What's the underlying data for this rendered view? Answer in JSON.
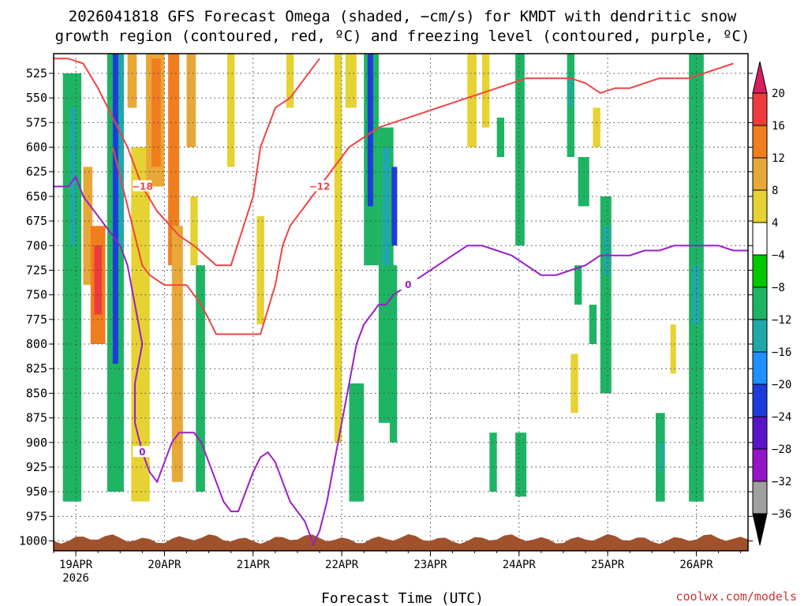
{
  "chart_data": {
    "type": "heatmap",
    "title_line1": "2026041818 GFS Forecast Omega (shaded, −cm/s) for KMDT with dendritic snow",
    "title_line2": "growth region (contoured, red, ºC) and freezing level (contoured, purple, ºC)",
    "xlabel": "Forecast Time (UTC)",
    "credit": "coolwx.com/models",
    "x_range_hours": [
      0,
      188
    ],
    "y_range_hpa": [
      505,
      1010
    ],
    "y_ticks": [
      525,
      550,
      575,
      600,
      625,
      650,
      675,
      700,
      725,
      750,
      775,
      800,
      825,
      850,
      875,
      900,
      925,
      950,
      975,
      1000
    ],
    "x_ticks": [
      {
        "label": "19APR",
        "sublabel": "2026",
        "hour": 6
      },
      {
        "label": "20APR",
        "hour": 30
      },
      {
        "label": "21APR",
        "hour": 54
      },
      {
        "label": "22APR",
        "hour": 78
      },
      {
        "label": "23APR",
        "hour": 102
      },
      {
        "label": "24APR",
        "hour": 126
      },
      {
        "label": "25APR",
        "hour": 150
      },
      {
        "label": "26APR",
        "hour": 174
      }
    ],
    "colorbar": {
      "labels": [
        "20",
        "16",
        "12",
        "8",
        "4",
        "−4",
        "−8",
        "−12",
        "−16",
        "−20",
        "−24",
        "−28",
        "−32",
        "−36"
      ],
      "colors": [
        "#d81e5b",
        "#ee3b3b",
        "#f07d1e",
        "#e8a838",
        "#e6d232",
        "#ffffff",
        "#00c800",
        "#1eb464",
        "#20a8a8",
        "#1e90ff",
        "#1e3cdc",
        "#5a14c8",
        "#9614c8",
        "#a0a0a0",
        "#000000"
      ]
    },
    "shaded_regions": [
      {
        "x0": 2.5,
        "x1": 7.5,
        "p0": 525,
        "p1": 960,
        "value": -8
      },
      {
        "x0": 4.5,
        "x1": 6.0,
        "p0": 560,
        "p1": 700,
        "value": -14
      },
      {
        "x0": 8.0,
        "x1": 10.5,
        "p0": 620,
        "p1": 740,
        "value": 8
      },
      {
        "x0": 10.0,
        "x1": 14.0,
        "p0": 680,
        "p1": 800,
        "value": 12
      },
      {
        "x0": 11.0,
        "x1": 13.0,
        "p0": 700,
        "p1": 770,
        "value": 16
      },
      {
        "x0": 14.5,
        "x1": 19.0,
        "p0": 505,
        "p1": 950,
        "value": -8
      },
      {
        "x0": 16.0,
        "x1": 17.5,
        "p0": 505,
        "p1": 820,
        "value": -22
      },
      {
        "x0": 17.5,
        "x1": 19.0,
        "p0": 505,
        "p1": 700,
        "value": -14
      },
      {
        "x0": 20.0,
        "x1": 22.5,
        "p0": 505,
        "p1": 560,
        "value": 8
      },
      {
        "x0": 21.0,
        "x1": 26.0,
        "p0": 600,
        "p1": 960,
        "value": 6
      },
      {
        "x0": 25.0,
        "x1": 30.0,
        "p0": 505,
        "p1": 640,
        "value": 10
      },
      {
        "x0": 26.5,
        "x1": 29.0,
        "p0": 510,
        "p1": 620,
        "value": 14
      },
      {
        "x0": 31.0,
        "x1": 34.0,
        "p0": 505,
        "p1": 720,
        "value": 12
      },
      {
        "x0": 32.0,
        "x1": 35.0,
        "p0": 680,
        "p1": 940,
        "value": 8
      },
      {
        "x0": 36.0,
        "x1": 38.5,
        "p0": 505,
        "p1": 600,
        "value": 8
      },
      {
        "x0": 37.0,
        "x1": 39.0,
        "p0": 650,
        "p1": 720,
        "value": 5
      },
      {
        "x0": 38.5,
        "x1": 41.0,
        "p0": 720,
        "p1": 950,
        "value": -8
      },
      {
        "x0": 47.0,
        "x1": 49.0,
        "p0": 505,
        "p1": 620,
        "value": 5
      },
      {
        "x0": 55.0,
        "x1": 57.0,
        "p0": 670,
        "p1": 780,
        "value": 5
      },
      {
        "x0": 63.0,
        "x1": 65.0,
        "p0": 505,
        "p1": 560,
        "value": 5
      },
      {
        "x0": 76.0,
        "x1": 78.0,
        "p0": 505,
        "p1": 900,
        "value": 5
      },
      {
        "x0": 79.0,
        "x1": 82.0,
        "p0": 505,
        "p1": 560,
        "value": 5
      },
      {
        "x0": 80.0,
        "x1": 84.0,
        "p0": 840,
        "p1": 960,
        "value": -8
      },
      {
        "x0": 84.0,
        "x1": 88.0,
        "p0": 505,
        "p1": 720,
        "value": -10
      },
      {
        "x0": 85.0,
        "x1": 86.5,
        "p0": 505,
        "p1": 660,
        "value": -22
      },
      {
        "x0": 88.0,
        "x1": 92.0,
        "p0": 580,
        "p1": 880,
        "value": -8
      },
      {
        "x0": 89.0,
        "x1": 91.0,
        "p0": 600,
        "p1": 720,
        "value": -14
      },
      {
        "x0": 91.5,
        "x1": 93.0,
        "p0": 620,
        "p1": 700,
        "value": -22
      },
      {
        "x0": 91.0,
        "x1": 93.0,
        "p0": 720,
        "p1": 900,
        "value": -8
      },
      {
        "x0": 112.0,
        "x1": 114.5,
        "p0": 505,
        "p1": 600,
        "value": 5
      },
      {
        "x0": 116.0,
        "x1": 118.0,
        "p0": 505,
        "p1": 580,
        "value": 5
      },
      {
        "x0": 125.0,
        "x1": 127.5,
        "p0": 505,
        "p1": 700,
        "value": -8
      },
      {
        "x0": 125.0,
        "x1": 128.0,
        "p0": 890,
        "p1": 955,
        "value": -8
      },
      {
        "x0": 139.0,
        "x1": 141.0,
        "p0": 505,
        "p1": 610,
        "value": -8
      },
      {
        "x0": 139.5,
        "x1": 140.5,
        "p0": 530,
        "p1": 560,
        "value": -14
      },
      {
        "x0": 142.0,
        "x1": 145.0,
        "p0": 610,
        "p1": 660,
        "value": -8
      },
      {
        "x0": 141.0,
        "x1": 143.0,
        "p0": 720,
        "p1": 760,
        "value": -8
      },
      {
        "x0": 140.0,
        "x1": 142.0,
        "p0": 810,
        "p1": 870,
        "value": 5
      },
      {
        "x0": 146.0,
        "x1": 148.0,
        "p0": 560,
        "p1": 600,
        "value": 5
      },
      {
        "x0": 148.0,
        "x1": 151.0,
        "p0": 650,
        "p1": 850,
        "value": -8
      },
      {
        "x0": 149.0,
        "x1": 150.5,
        "p0": 680,
        "p1": 730,
        "value": -14
      },
      {
        "x0": 145.0,
        "x1": 147.0,
        "p0": 760,
        "p1": 800,
        "value": -8
      },
      {
        "x0": 163.0,
        "x1": 165.5,
        "p0": 870,
        "p1": 960,
        "value": -8
      },
      {
        "x0": 164.0,
        "x1": 165.0,
        "p0": 900,
        "p1": 930,
        "value": -14
      },
      {
        "x0": 167.0,
        "x1": 168.5,
        "p0": 780,
        "p1": 830,
        "value": 5
      },
      {
        "x0": 172.0,
        "x1": 176.0,
        "p0": 505,
        "p1": 960,
        "value": -8
      },
      {
        "x0": 173.0,
        "x1": 175.0,
        "p0": 720,
        "p1": 780,
        "value": -14
      },
      {
        "x0": 118.0,
        "x1": 120.0,
        "p0": 890,
        "p1": 950,
        "value": -8
      },
      {
        "x0": 120.0,
        "x1": 122.0,
        "p0": 570,
        "p1": 610,
        "value": -8
      }
    ],
    "snow_growth_contours": [
      {
        "label": "−18",
        "points": [
          [
            0,
            510
          ],
          [
            4,
            510
          ],
          [
            8,
            515
          ],
          [
            12,
            540
          ],
          [
            16,
            570
          ],
          [
            20,
            600
          ],
          [
            24,
            640
          ],
          [
            28,
            665
          ],
          [
            34,
            690
          ],
          [
            38,
            700
          ],
          [
            44,
            720
          ],
          [
            48,
            720
          ],
          [
            54,
            650
          ],
          [
            56,
            600
          ],
          [
            60,
            560
          ],
          [
            64,
            550
          ],
          [
            68,
            530
          ],
          [
            72,
            510
          ]
        ]
      },
      {
        "label": "−12",
        "points": [
          [
            16,
            600
          ],
          [
            18,
            630
          ],
          [
            22,
            690
          ],
          [
            24,
            720
          ],
          [
            26,
            730
          ],
          [
            30,
            740
          ],
          [
            36,
            740
          ],
          [
            40,
            760
          ],
          [
            44,
            790
          ],
          [
            48,
            790
          ],
          [
            56,
            790
          ],
          [
            60,
            740
          ],
          [
            62,
            700
          ],
          [
            64,
            680
          ],
          [
            68,
            660
          ],
          [
            72,
            640
          ],
          [
            76,
            620
          ],
          [
            80,
            600
          ],
          [
            84,
            590
          ],
          [
            88,
            580
          ],
          [
            92,
            575
          ],
          [
            96,
            570
          ],
          [
            100,
            565
          ],
          [
            104,
            560
          ],
          [
            108,
            555
          ],
          [
            112,
            550
          ],
          [
            116,
            545
          ],
          [
            120,
            540
          ],
          [
            124,
            535
          ],
          [
            128,
            530
          ],
          [
            132,
            530
          ],
          [
            136,
            530
          ],
          [
            140,
            530
          ],
          [
            144,
            535
          ],
          [
            148,
            545
          ],
          [
            152,
            540
          ],
          [
            156,
            540
          ],
          [
            160,
            535
          ],
          [
            164,
            530
          ],
          [
            168,
            530
          ],
          [
            172,
            530
          ],
          [
            176,
            525
          ],
          [
            180,
            520
          ],
          [
            184,
            515
          ]
        ]
      }
    ],
    "freezing_contours": [
      {
        "label": "0",
        "points": [
          [
            0,
            640
          ],
          [
            4,
            640
          ],
          [
            6,
            630
          ],
          [
            8,
            650
          ],
          [
            12,
            670
          ],
          [
            16,
            690
          ],
          [
            18,
            700
          ],
          [
            20,
            720
          ],
          [
            22,
            760
          ],
          [
            24,
            800
          ],
          [
            22,
            840
          ],
          [
            22,
            880
          ],
          [
            24,
            910
          ],
          [
            26,
            930
          ],
          [
            28,
            940
          ],
          [
            30,
            920
          ],
          [
            32,
            900
          ],
          [
            34,
            890
          ],
          [
            36,
            890
          ],
          [
            38,
            890
          ],
          [
            40,
            900
          ],
          [
            42,
            920
          ],
          [
            44,
            940
          ],
          [
            46,
            960
          ],
          [
            48,
            970
          ],
          [
            50,
            970
          ],
          [
            52,
            950
          ],
          [
            54,
            930
          ],
          [
            56,
            915
          ],
          [
            58,
            910
          ],
          [
            60,
            920
          ],
          [
            62,
            940
          ],
          [
            64,
            960
          ],
          [
            66,
            970
          ],
          [
            68,
            980
          ],
          [
            70,
            1000
          ]
        ]
      },
      {
        "label": "0",
        "points": [
          [
            70,
            1005
          ],
          [
            72,
            990
          ],
          [
            74,
            960
          ],
          [
            76,
            920
          ],
          [
            78,
            880
          ],
          [
            80,
            840
          ],
          [
            82,
            800
          ],
          [
            84,
            780
          ],
          [
            86,
            770
          ],
          [
            88,
            760
          ],
          [
            90,
            760
          ],
          [
            92,
            750
          ],
          [
            96,
            740
          ],
          [
            100,
            730
          ],
          [
            104,
            720
          ],
          [
            108,
            710
          ],
          [
            112,
            700
          ],
          [
            116,
            700
          ],
          [
            120,
            705
          ],
          [
            124,
            710
          ],
          [
            128,
            720
          ],
          [
            132,
            730
          ],
          [
            136,
            730
          ],
          [
            140,
            725
          ],
          [
            144,
            720
          ],
          [
            148,
            710
          ],
          [
            152,
            710
          ],
          [
            156,
            710
          ],
          [
            160,
            705
          ],
          [
            164,
            705
          ],
          [
            168,
            700
          ],
          [
            172,
            700
          ],
          [
            176,
            700
          ],
          [
            180,
            700
          ],
          [
            184,
            705
          ],
          [
            188,
            705
          ]
        ]
      }
    ]
  }
}
